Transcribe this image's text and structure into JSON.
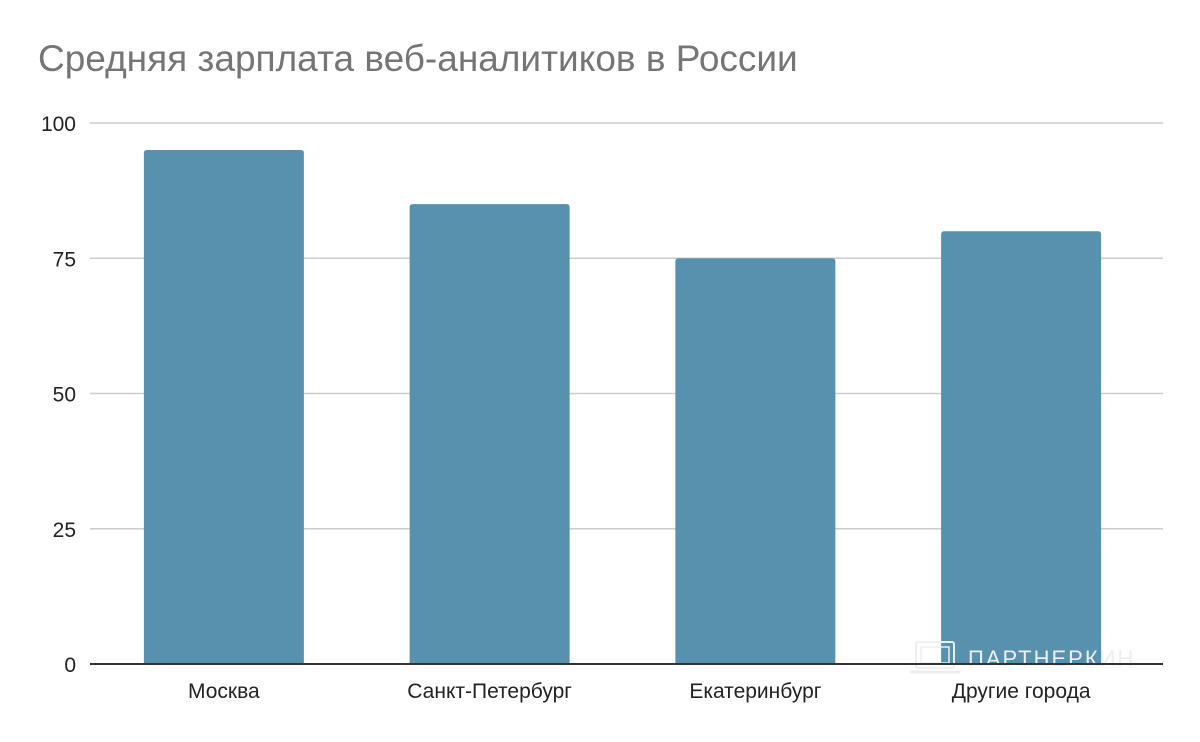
{
  "chart_data": {
    "type": "bar",
    "title": "Средняя зарплата веб-аналитиков в России",
    "categories": [
      "Москва",
      "Санкт-Петербург",
      "Екатеринбург",
      "Другие города"
    ],
    "values": [
      95,
      85,
      75,
      80
    ],
    "ylim": [
      0,
      100
    ],
    "yticks": [
      "0",
      "25",
      "50",
      "75",
      "100"
    ],
    "xlabel": "",
    "ylabel": "",
    "grid": true,
    "legend": "none",
    "bar_color": "#5891ad",
    "gridline_color": "#cccccc",
    "axis_color": "#333333"
  },
  "watermark": {
    "text": "ПАРТНЕРКИН",
    "icon": "laptop-icon"
  }
}
